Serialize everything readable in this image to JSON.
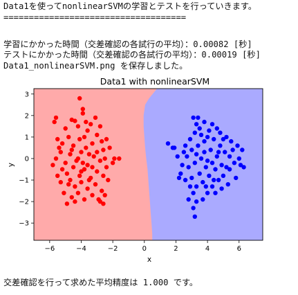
{
  "output": {
    "line1": "Data1を使ってnonlinearSVMの学習とテストを行っていきます。",
    "line2": "====================================",
    "line3": "学習にかかった時間（交差確認の各試行の平均）：0.00082 [秒]",
    "line4": "テストにかかった時間（交差確認の各試行の平均）：0.00019 [秒]",
    "line5": "Data1_nonlinearSVM.png を保存しました。",
    "line6": "交差確認を行って求めた平均精度は 1.000 です。"
  },
  "colors": {
    "region_red": "#ffaaaa",
    "region_blue": "#aaaaff",
    "points_red": "#ff0000",
    "points_blue": "#0000ff"
  },
  "chart_data": {
    "type": "scatter",
    "title": "Data1 with nonlinearSVM",
    "xlabel": "x",
    "ylabel": "y",
    "xlim": [
      -7,
      7.5
    ],
    "ylim": [
      -3.8,
      3.25
    ],
    "xticks": [
      -6,
      -4,
      -2,
      0,
      2,
      4,
      6
    ],
    "yticks": [
      -3,
      -2,
      -1,
      0,
      1,
      2,
      3
    ],
    "grid": false,
    "decision_boundary": {
      "y": [
        3.25,
        2.8,
        2.5,
        2.0,
        1.5,
        1.0,
        0.5,
        0.0,
        -0.5,
        -1.0,
        -1.5,
        -2.0,
        -2.5,
        -3.0,
        -3.5,
        -3.8
      ],
      "x": [
        0.8,
        0.3,
        0.05,
        -0.05,
        -0.05,
        0.0,
        0.05,
        0.12,
        0.2,
        0.25,
        0.3,
        0.35,
        0.4,
        0.45,
        0.5,
        0.5
      ]
    },
    "series": [
      {
        "color": "#ff0000",
        "points": [
          [
            -4.1,
            2.8
          ],
          [
            -5.6,
            1.9
          ],
          [
            -3.9,
            2.3
          ],
          [
            -3.9,
            2.1
          ],
          [
            -4.6,
            1.8
          ],
          [
            -4.4,
            1.75
          ],
          [
            -3.7,
            1.7
          ],
          [
            -3.4,
            1.6
          ],
          [
            -3.1,
            1.9
          ],
          [
            -2.8,
            1.5
          ],
          [
            -5.7,
            1.7
          ],
          [
            -5.0,
            1.4
          ],
          [
            -4.2,
            1.5
          ],
          [
            -3.6,
            1.3
          ],
          [
            -2.4,
            0.9
          ],
          [
            -2.7,
            0.8
          ],
          [
            -5.5,
            0.9
          ],
          [
            -5.2,
            0.7
          ],
          [
            -4.8,
            1.0
          ],
          [
            -4.5,
            0.6
          ],
          [
            -4.1,
            0.9
          ],
          [
            -3.7,
            0.5
          ],
          [
            -3.3,
            0.7
          ],
          [
            -3.0,
            1.1
          ],
          [
            -2.6,
            0.4
          ],
          [
            -2.2,
            0.5
          ],
          [
            -1.9,
            0.0
          ],
          [
            -2.0,
            -0.2
          ],
          [
            -1.6,
            0.0
          ],
          [
            -5.6,
            0.0
          ],
          [
            -5.3,
            0.3
          ],
          [
            -5.0,
            -0.2
          ],
          [
            -4.7,
            0.2
          ],
          [
            -4.3,
            -0.1
          ],
          [
            -4.0,
            0.3
          ],
          [
            -3.6,
            -0.3
          ],
          [
            -3.2,
            0.1
          ],
          [
            -2.8,
            -0.1
          ],
          [
            -2.4,
            -0.4
          ],
          [
            -5.2,
            -0.5
          ],
          [
            -4.9,
            -0.7
          ],
          [
            -4.5,
            -0.4
          ],
          [
            -4.1,
            -0.8
          ],
          [
            -3.8,
            -0.5
          ],
          [
            -3.4,
            -0.9
          ],
          [
            -3.0,
            -0.6
          ],
          [
            -2.6,
            -0.8
          ],
          [
            -2.3,
            -1.0
          ],
          [
            -5.5,
            -0.8
          ],
          [
            -5.3,
            -1.1
          ],
          [
            -4.8,
            -1.2
          ],
          [
            -4.4,
            -1.3
          ],
          [
            -4.0,
            -1.1
          ],
          [
            -3.6,
            -1.4
          ],
          [
            -3.1,
            -1.2
          ],
          [
            -2.7,
            -1.5
          ],
          [
            -2.5,
            -1.7
          ],
          [
            -5.1,
            -1.6
          ],
          [
            -4.6,
            -1.8
          ],
          [
            -4.2,
            -1.6
          ],
          [
            -3.8,
            -1.9
          ],
          [
            -3.3,
            -1.7
          ],
          [
            -2.9,
            -1.9
          ],
          [
            -2.6,
            -2.1
          ],
          [
            -4.9,
            -2.1
          ],
          [
            -4.4,
            -2.0
          ],
          [
            -2.8,
            -2.0
          ],
          [
            -4.6,
            0.4
          ],
          [
            -3.9,
            -0.2
          ],
          [
            -3.5,
            0.2
          ],
          [
            -4.2,
            0.0
          ],
          [
            -3.3,
            -0.4
          ],
          [
            -4.7,
            -1.0
          ],
          [
            -3.8,
            1.0
          ],
          [
            -3.0,
            0.3
          ],
          [
            -2.5,
            0.0
          ],
          [
            -5.8,
            -0.3
          ],
          [
            -4.0,
            -0.6
          ],
          [
            -3.5,
            -1.0
          ],
          [
            -5.4,
            0.5
          ]
        ]
      },
      {
        "color": "#0000ff",
        "points": [
          [
            3.1,
            1.9
          ],
          [
            3.4,
            1.9
          ],
          [
            3.3,
            1.6
          ],
          [
            3.8,
            1.7
          ],
          [
            4.3,
            1.6
          ],
          [
            4.6,
            1.4
          ],
          [
            4.8,
            1.2
          ],
          [
            5.2,
            1.0
          ],
          [
            5.5,
            0.8
          ],
          [
            5.9,
            0.6
          ],
          [
            6.2,
            0.4
          ],
          [
            6.0,
            0.0
          ],
          [
            5.7,
            -0.2
          ],
          [
            6.1,
            -0.3
          ],
          [
            5.4,
            -0.5
          ],
          [
            5.0,
            -0.8
          ],
          [
            4.7,
            -1.0
          ],
          [
            4.3,
            -1.3
          ],
          [
            4.0,
            -1.6
          ],
          [
            3.7,
            -1.9
          ],
          [
            3.3,
            -2.0
          ],
          [
            3.1,
            -1.6
          ],
          [
            2.9,
            -1.3
          ],
          [
            2.6,
            -1.0
          ],
          [
            2.3,
            -0.7
          ],
          [
            2.4,
            -0.3
          ],
          [
            2.1,
            0.1
          ],
          [
            1.5,
            0.7
          ],
          [
            1.9,
            0.5
          ],
          [
            2.6,
            0.6
          ],
          [
            2.9,
            0.9
          ],
          [
            3.2,
            1.2
          ],
          [
            3.6,
            1.1
          ],
          [
            4.0,
            1.0
          ],
          [
            4.4,
            0.9
          ],
          [
            4.8,
            0.6
          ],
          [
            5.1,
            0.3
          ],
          [
            5.4,
            0.1
          ],
          [
            4.9,
            -0.3
          ],
          [
            4.5,
            -0.5
          ],
          [
            4.1,
            -0.8
          ],
          [
            3.7,
            -1.1
          ],
          [
            3.3,
            -1.3
          ],
          [
            3.0,
            -0.9
          ],
          [
            2.8,
            -0.4
          ],
          [
            2.7,
            0.1
          ],
          [
            3.0,
            0.4
          ],
          [
            3.4,
            0.6
          ],
          [
            3.8,
            0.3
          ],
          [
            4.2,
            0.4
          ],
          [
            4.6,
            0.1
          ],
          [
            4.3,
            -0.2
          ],
          [
            3.9,
            -0.4
          ],
          [
            3.5,
            -0.7
          ],
          [
            3.2,
            -0.2
          ],
          [
            3.6,
            0.0
          ],
          [
            4.0,
            -0.1
          ],
          [
            3.3,
            0.2
          ],
          [
            3.8,
            0.8
          ],
          [
            4.5,
            -1.6
          ],
          [
            5.3,
            -1.2
          ],
          [
            4.9,
            -1.4
          ],
          [
            3.2,
            -2.7
          ],
          [
            3.1,
            -2.3
          ],
          [
            2.8,
            -1.9
          ],
          [
            6.3,
            -0.4
          ],
          [
            5.8,
            -0.9
          ],
          [
            5.6,
            0.4
          ],
          [
            2.2,
            -0.9
          ],
          [
            1.8,
            0.5
          ],
          [
            4.1,
            1.3
          ],
          [
            5.0,
            0.9
          ],
          [
            3.5,
            1.4
          ],
          [
            4.4,
            -1.0
          ],
          [
            3.9,
            -1.3
          ],
          [
            2.5,
            0.3
          ],
          [
            5.2,
            -0.4
          ],
          [
            4.7,
            0.3
          ]
        ]
      }
    ]
  }
}
